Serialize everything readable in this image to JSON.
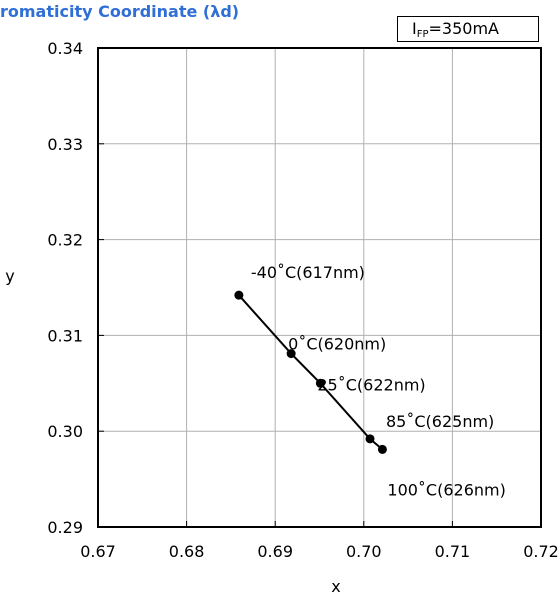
{
  "chart_data": {
    "type": "line",
    "title": "romaticity Coordinate (λd)",
    "condition": {
      "symbol": "I",
      "subscript": "FP",
      "value": "=350mA"
    },
    "xlabel": "x",
    "ylabel": "y",
    "xlim": [
      0.67,
      0.72
    ],
    "ylim": [
      0.29,
      0.34
    ],
    "x_ticks": [
      "0.67",
      "0.68",
      "0.69",
      "0.70",
      "0.71",
      "0.72"
    ],
    "y_ticks": [
      "0.29",
      "0.30",
      "0.31",
      "0.32",
      "0.33",
      "0.34"
    ],
    "grid": true,
    "series": [
      {
        "points": [
          {
            "x": 0.6859,
            "y": 0.3142,
            "label": "-40˚C(617nm)"
          },
          {
            "x": 0.6918,
            "y": 0.3081,
            "label": "0˚C(620nm)"
          },
          {
            "x": 0.6951,
            "y": 0.305,
            "label": "25˚C(622nm)"
          },
          {
            "x": 0.7007,
            "y": 0.2992,
            "label": "85˚C(625nm)"
          },
          {
            "x": 0.7021,
            "y": 0.2981,
            "label": "100˚C(626nm)"
          }
        ]
      }
    ]
  }
}
